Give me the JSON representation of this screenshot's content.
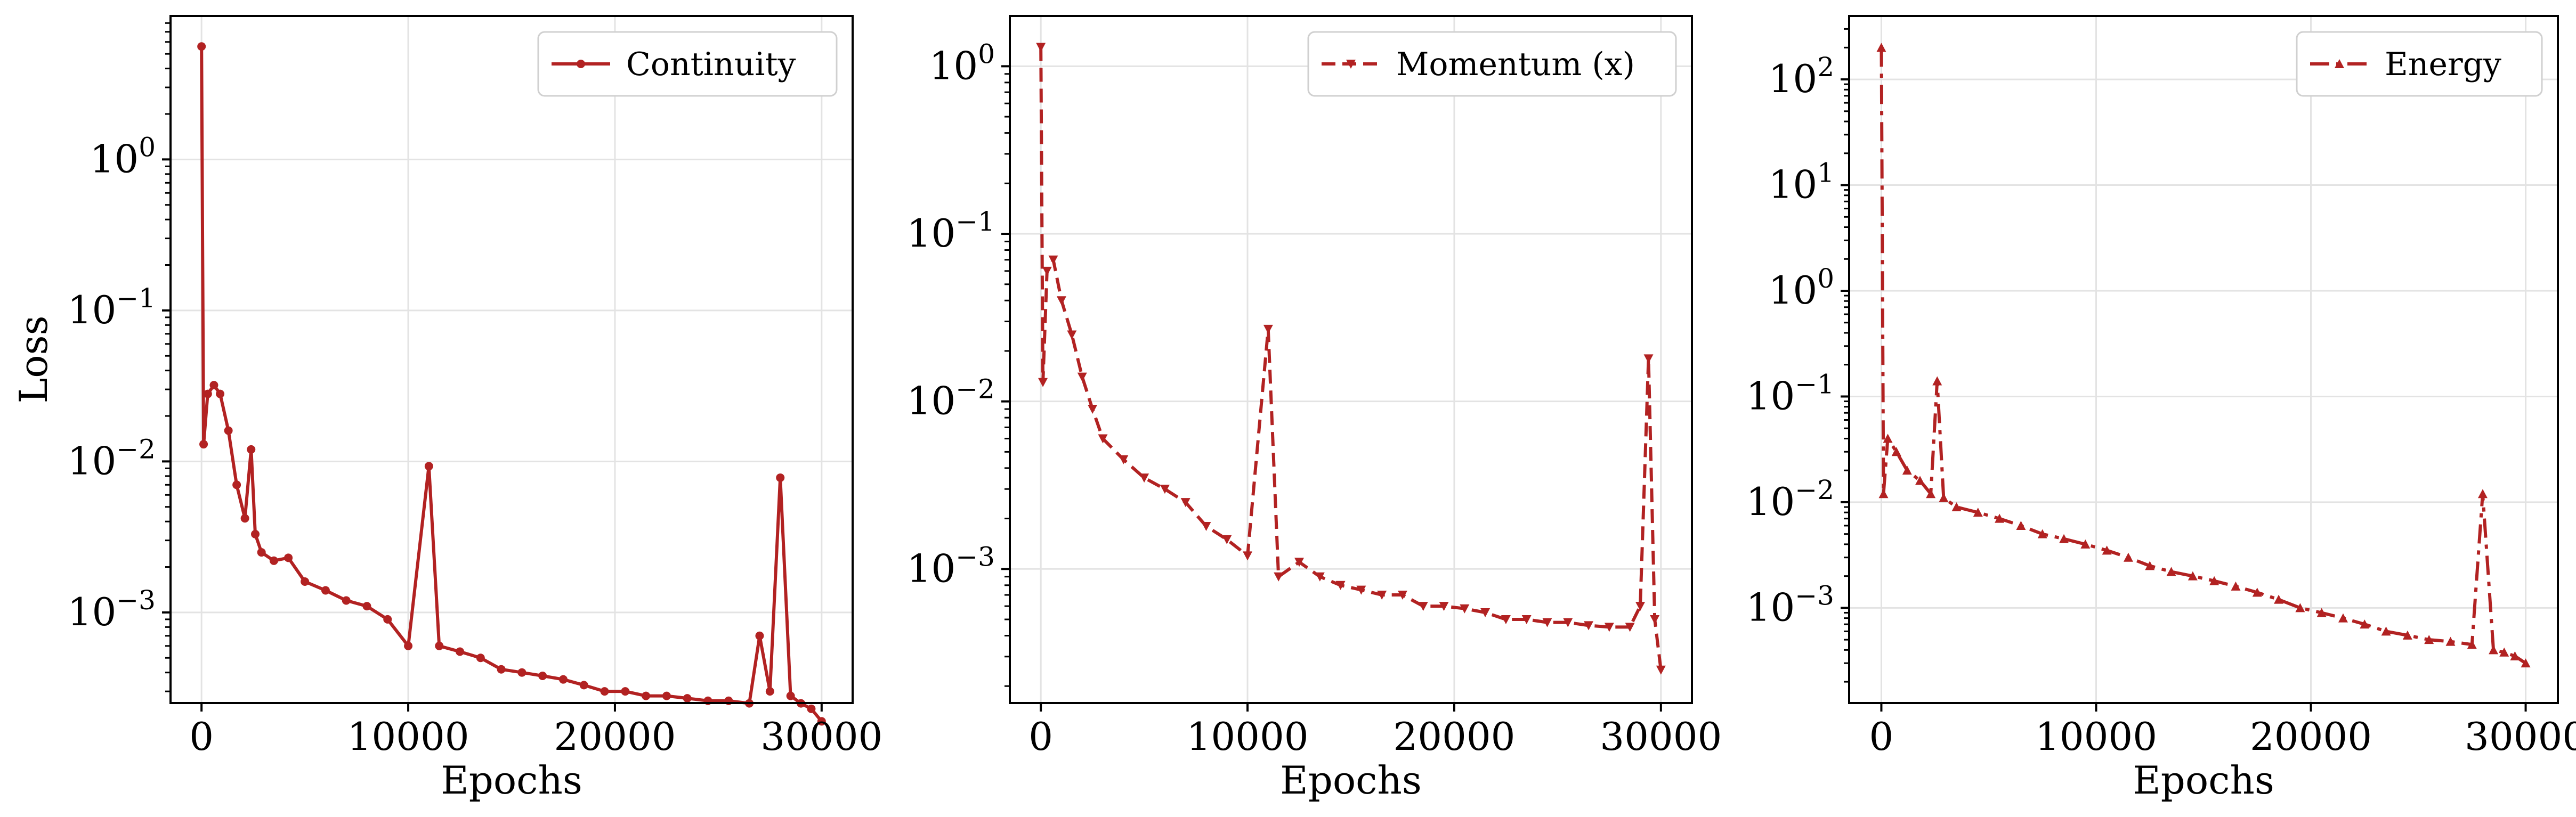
{
  "figure": {
    "line_color": "#b22222",
    "grid_color": "#e3e3e3"
  },
  "chart_data": [
    {
      "type": "line",
      "xlabel": "Epochs",
      "ylabel": "Loss",
      "xlim": [
        -1500,
        31500
      ],
      "ylim_log10": [
        -3.6,
        0.95
      ],
      "yscale": "log",
      "xticks": [
        0,
        10000,
        20000,
        30000
      ],
      "xtick_labels": [
        "0",
        "10000",
        "20000",
        "30000"
      ],
      "yticks_log10": [
        -3,
        -2,
        -1,
        0
      ],
      "ytick_base": "10",
      "ytick_exponents": [
        "−3",
        "−2",
        "−1",
        "0"
      ],
      "grid": true,
      "legend_position": "top-right",
      "series": [
        {
          "name": "Continuity",
          "line_style": "solid",
          "marker": "circle",
          "x": [
            0,
            100,
            300,
            600,
            900,
            1300,
            1700,
            2100,
            2400,
            2600,
            2900,
            3500,
            4200,
            5000,
            6000,
            7000,
            8000,
            9000,
            10000,
            11000,
            11500,
            12500,
            13500,
            14500,
            15500,
            16500,
            17500,
            18500,
            19500,
            20500,
            21500,
            22500,
            23500,
            24500,
            25500,
            26500,
            27000,
            27500,
            28000,
            28500,
            29000,
            29500,
            30000
          ],
          "y": [
            5.6,
            0.013,
            0.028,
            0.032,
            0.028,
            0.016,
            0.007,
            0.0042,
            0.012,
            0.0033,
            0.0025,
            0.0022,
            0.0023,
            0.0016,
            0.0014,
            0.0012,
            0.0011,
            0.0009,
            0.0006,
            0.0093,
            0.0006,
            0.00055,
            0.0005,
            0.00042,
            0.0004,
            0.00038,
            0.00036,
            0.00033,
            0.0003,
            0.0003,
            0.00028,
            0.00028,
            0.00027,
            0.00026,
            0.00026,
            0.00025,
            0.0007,
            0.0003,
            0.0078,
            0.00028,
            0.00025,
            0.00023,
            0.00019
          ]
        }
      ]
    },
    {
      "type": "line",
      "xlabel": "Epochs",
      "ylabel": "",
      "xlim": [
        -1500,
        31500
      ],
      "ylim_log10": [
        -3.8,
        0.3
      ],
      "yscale": "log",
      "xticks": [
        0,
        10000,
        20000,
        30000
      ],
      "xtick_labels": [
        "0",
        "10000",
        "20000",
        "30000"
      ],
      "yticks_log10": [
        -3,
        -2,
        -1,
        0
      ],
      "ytick_base": "10",
      "ytick_exponents": [
        "−3",
        "−2",
        "−1",
        "0"
      ],
      "grid": true,
      "legend_position": "top-right",
      "series": [
        {
          "name": "Momentum (x)",
          "line_style": "dashed",
          "marker": "triangle-down",
          "x": [
            0,
            100,
            300,
            600,
            1000,
            1500,
            2000,
            2500,
            3000,
            4000,
            5000,
            6000,
            7000,
            8000,
            9000,
            10000,
            11000,
            11500,
            12500,
            13500,
            14500,
            15500,
            16500,
            17500,
            18500,
            19500,
            20500,
            21500,
            22500,
            23500,
            24500,
            25500,
            26500,
            27500,
            28500,
            29000,
            29400,
            29700,
            30000
          ],
          "y": [
            1.3,
            0.013,
            0.06,
            0.07,
            0.04,
            0.025,
            0.014,
            0.009,
            0.006,
            0.0045,
            0.0035,
            0.003,
            0.0025,
            0.0018,
            0.0015,
            0.0012,
            0.027,
            0.0009,
            0.0011,
            0.0009,
            0.0008,
            0.00075,
            0.0007,
            0.0007,
            0.0006,
            0.0006,
            0.00058,
            0.00055,
            0.0005,
            0.0005,
            0.00048,
            0.00048,
            0.00046,
            0.00045,
            0.00045,
            0.0006,
            0.018,
            0.0005,
            0.00025
          ]
        }
      ]
    },
    {
      "type": "line",
      "xlabel": "Epochs",
      "ylabel": "",
      "xlim": [
        -1500,
        31500
      ],
      "ylim_log10": [
        -3.9,
        2.6
      ],
      "yscale": "log",
      "xticks": [
        0,
        10000,
        20000,
        30000
      ],
      "xtick_labels": [
        "0",
        "10000",
        "20000",
        "30000"
      ],
      "yticks_log10": [
        -3,
        -2,
        -1,
        0,
        1,
        2
      ],
      "ytick_base": "10",
      "ytick_exponents": [
        "−3",
        "−2",
        "−1",
        "0",
        "1",
        "2"
      ],
      "grid": true,
      "legend_position": "top-right",
      "series": [
        {
          "name": "Energy",
          "line_style": "dashdot",
          "marker": "triangle-up",
          "x": [
            0,
            100,
            300,
            700,
            1200,
            1800,
            2300,
            2600,
            2900,
            3500,
            4500,
            5500,
            6500,
            7500,
            8500,
            9500,
            10500,
            11500,
            12500,
            13500,
            14500,
            15500,
            16500,
            17500,
            18500,
            19500,
            20500,
            21500,
            22500,
            23500,
            24500,
            25500,
            26500,
            27500,
            28000,
            28500,
            29000,
            29500,
            30000
          ],
          "y": [
            200,
            0.012,
            0.04,
            0.03,
            0.02,
            0.016,
            0.012,
            0.14,
            0.011,
            0.009,
            0.008,
            0.007,
            0.006,
            0.005,
            0.0045,
            0.004,
            0.0035,
            0.003,
            0.0025,
            0.0022,
            0.002,
            0.0018,
            0.0016,
            0.0014,
            0.0012,
            0.001,
            0.0009,
            0.0008,
            0.0007,
            0.0006,
            0.00055,
            0.0005,
            0.00048,
            0.00045,
            0.012,
            0.0004,
            0.00038,
            0.00035,
            0.0003
          ]
        }
      ]
    }
  ]
}
